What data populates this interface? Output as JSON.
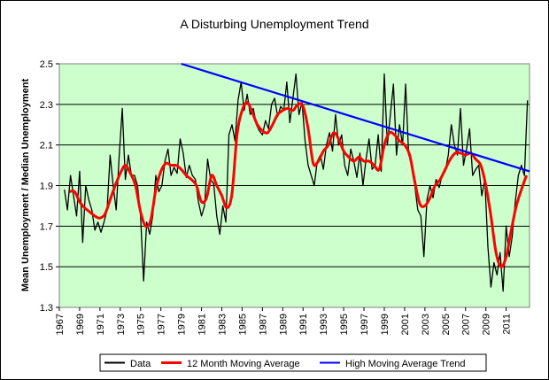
{
  "chart_data": {
    "type": "line",
    "title": "A Disturbing Unemployment Trend",
    "ylabel": "Mean Unemployment / Median Unemployment",
    "xlabel": "",
    "xlim": [
      1967,
      2013.3
    ],
    "ylim": [
      1.3,
      2.5
    ],
    "x_ticks": [
      1967,
      1969,
      1971,
      1973,
      1975,
      1977,
      1979,
      1981,
      1983,
      1985,
      1987,
      1989,
      1991,
      1993,
      1995,
      1997,
      1999,
      2001,
      2003,
      2005,
      2007,
      2009,
      2011
    ],
    "y_ticks": [
      1.3,
      1.5,
      1.7,
      1.9,
      2.1,
      2.3,
      2.5
    ],
    "y_tick_labels": [
      "1.3",
      "1.5",
      "1.7",
      "1.9",
      "2.1",
      "2.3",
      "2.5"
    ],
    "grid": "horizontal",
    "plot_background": "#ccffcc",
    "legend_position": "bottom",
    "series": [
      {
        "name": "Data",
        "color": "#000000",
        "x": [
          1967.5,
          1967.8,
          1968.1,
          1968.4,
          1968.7,
          1969.0,
          1969.3,
          1969.6,
          1969.9,
          1970.2,
          1970.5,
          1970.8,
          1971.1,
          1971.4,
          1971.7,
          1972.0,
          1972.3,
          1972.6,
          1972.9,
          1973.2,
          1973.5,
          1973.8,
          1974.1,
          1974.4,
          1974.7,
          1975.0,
          1975.3,
          1975.6,
          1975.9,
          1976.2,
          1976.5,
          1976.8,
          1977.1,
          1977.4,
          1977.7,
          1978.0,
          1978.3,
          1978.6,
          1978.9,
          1979.2,
          1979.5,
          1979.8,
          1980.1,
          1980.4,
          1980.7,
          1981.0,
          1981.3,
          1981.6,
          1981.9,
          1982.2,
          1982.5,
          1982.8,
          1983.1,
          1983.4,
          1983.7,
          1984.0,
          1984.3,
          1984.6,
          1984.9,
          1985.2,
          1985.5,
          1985.8,
          1986.1,
          1986.4,
          1986.7,
          1987.0,
          1987.3,
          1987.6,
          1987.9,
          1988.2,
          1988.5,
          1988.8,
          1989.1,
          1989.4,
          1989.7,
          1990.0,
          1990.3,
          1990.6,
          1990.9,
          1991.2,
          1991.5,
          1991.8,
          1992.1,
          1992.4,
          1992.7,
          1993.0,
          1993.3,
          1993.6,
          1993.9,
          1994.2,
          1994.5,
          1994.8,
          1995.1,
          1995.4,
          1995.7,
          1996.0,
          1996.3,
          1996.6,
          1996.9,
          1997.2,
          1997.5,
          1997.8,
          1998.1,
          1998.4,
          1998.7,
          1999.0,
          1999.3,
          1999.6,
          1999.9,
          2000.2,
          2000.5,
          2000.8,
          2001.1,
          2001.4,
          2001.7,
          2002.0,
          2002.3,
          2002.6,
          2002.9,
          2003.2,
          2003.5,
          2003.8,
          2004.1,
          2004.4,
          2004.7,
          2005.0,
          2005.3,
          2005.6,
          2005.9,
          2006.2,
          2006.5,
          2006.8,
          2007.1,
          2007.4,
          2007.7,
          2008.0,
          2008.3,
          2008.6,
          2008.9,
          2009.2,
          2009.5,
          2009.8,
          2010.1,
          2010.4,
          2010.7,
          2011.0,
          2011.3,
          2011.6,
          2011.9,
          2012.2,
          2012.5,
          2012.8,
          2013.1
        ],
        "y": [
          1.88,
          1.78,
          1.95,
          1.85,
          1.75,
          1.97,
          1.62,
          1.9,
          1.83,
          1.78,
          1.68,
          1.72,
          1.67,
          1.72,
          1.78,
          2.05,
          1.9,
          1.78,
          2.05,
          2.28,
          1.93,
          2.05,
          1.95,
          1.95,
          1.9,
          1.75,
          1.43,
          1.72,
          1.66,
          1.75,
          1.95,
          1.87,
          1.9,
          2.02,
          2.08,
          1.95,
          1.99,
          1.96,
          2.13,
          2.06,
          1.94,
          2.0,
          1.95,
          1.93,
          1.82,
          1.75,
          1.8,
          2.03,
          1.93,
          1.91,
          1.75,
          1.66,
          1.8,
          1.72,
          2.15,
          2.2,
          2.12,
          2.32,
          2.41,
          2.27,
          2.35,
          2.25,
          2.28,
          2.2,
          2.17,
          2.15,
          2.22,
          2.18,
          2.3,
          2.33,
          2.24,
          2.29,
          2.27,
          2.41,
          2.21,
          2.33,
          2.45,
          2.25,
          2.31,
          2.12,
          2.0,
          1.95,
          1.9,
          2.02,
          2.05,
          1.98,
          2.1,
          2.16,
          2.07,
          2.25,
          2.1,
          2.15,
          2.0,
          1.95,
          2.08,
          2.02,
          1.94,
          2.06,
          1.9,
          2.03,
          2.13,
          1.98,
          2.0,
          2.15,
          1.97,
          2.45,
          2.1,
          2.25,
          2.4,
          2.05,
          2.2,
          2.1,
          2.4,
          2.05,
          2.02,
          1.9,
          1.78,
          1.75,
          1.55,
          1.83,
          1.9,
          1.84,
          1.93,
          1.89,
          1.95,
          1.97,
          2.05,
          2.2,
          2.1,
          2.05,
          2.28,
          2.0,
          2.08,
          2.18,
          1.95,
          1.98,
          2.0,
          1.85,
          1.93,
          1.6,
          1.4,
          1.52,
          1.46,
          1.57,
          1.38,
          1.7,
          1.55,
          1.65,
          1.82,
          1.95,
          2.0,
          1.95,
          2.32
        ]
      },
      {
        "name": "12 Month Moving Average",
        "color": "#ff0000",
        "x": [
          1968.0,
          1968.5,
          1969.0,
          1969.5,
          1970.0,
          1970.5,
          1971.0,
          1971.5,
          1972.0,
          1972.5,
          1973.0,
          1973.5,
          1974.0,
          1974.5,
          1975.0,
          1975.5,
          1976.0,
          1976.5,
          1977.0,
          1977.5,
          1978.0,
          1978.5,
          1979.0,
          1979.5,
          1980.0,
          1980.5,
          1981.0,
          1981.5,
          1982.0,
          1982.5,
          1983.0,
          1983.5,
          1984.0,
          1984.5,
          1985.0,
          1985.5,
          1986.0,
          1986.5,
          1987.0,
          1987.5,
          1988.0,
          1988.5,
          1989.0,
          1989.5,
          1990.0,
          1990.5,
          1991.0,
          1991.5,
          1992.0,
          1992.5,
          1993.0,
          1993.5,
          1994.0,
          1994.5,
          1995.0,
          1995.5,
          1996.0,
          1996.5,
          1997.0,
          1997.5,
          1998.0,
          1998.5,
          1999.0,
          1999.5,
          2000.0,
          2000.5,
          2001.0,
          2001.5,
          2002.0,
          2002.5,
          2003.0,
          2003.5,
          2004.0,
          2004.5,
          2005.0,
          2005.5,
          2006.0,
          2006.5,
          2007.0,
          2007.5,
          2008.0,
          2008.5,
          2009.0,
          2009.5,
          2010.0,
          2010.5,
          2011.0,
          2011.5,
          2012.0,
          2012.5,
          2013.0
        ],
        "y": [
          1.87,
          1.87,
          1.82,
          1.79,
          1.77,
          1.75,
          1.74,
          1.76,
          1.83,
          1.9,
          1.96,
          2.0,
          1.96,
          1.9,
          1.77,
          1.7,
          1.73,
          1.88,
          1.97,
          2.01,
          2.0,
          2.0,
          1.98,
          1.95,
          1.93,
          1.9,
          1.82,
          1.84,
          1.95,
          1.9,
          1.85,
          1.79,
          1.86,
          2.15,
          2.27,
          2.31,
          2.26,
          2.2,
          2.17,
          2.16,
          2.2,
          2.25,
          2.27,
          2.28,
          2.27,
          2.3,
          2.29,
          2.18,
          2.01,
          2.02,
          2.07,
          2.1,
          2.16,
          2.13,
          2.07,
          2.04,
          2.02,
          2.04,
          2.02,
          2.02,
          2.0,
          1.98,
          2.1,
          2.16,
          2.15,
          2.12,
          2.1,
          2.05,
          1.92,
          1.81,
          1.8,
          1.84,
          1.9,
          1.93,
          1.98,
          2.03,
          2.06,
          2.06,
          2.05,
          2.06,
          2.03,
          2.0,
          1.9,
          1.75,
          1.57,
          1.5,
          1.55,
          1.68,
          1.8,
          1.88,
          1.95
        ]
      },
      {
        "name": "High Moving Average Trend",
        "color": "#0000ff",
        "x": [
          1979.0,
          2013.3
        ],
        "y": [
          2.5,
          1.97
        ]
      }
    ]
  }
}
